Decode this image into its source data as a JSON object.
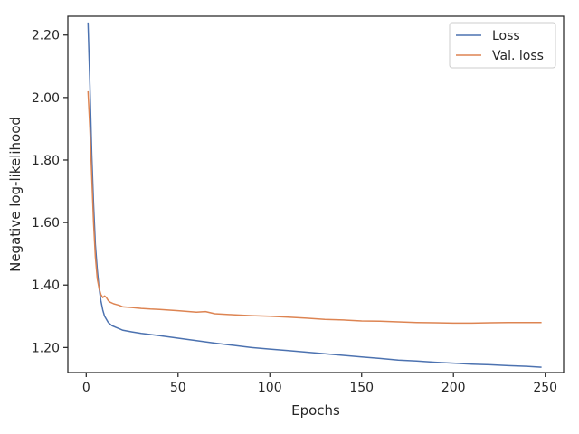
{
  "chart_data": {
    "type": "line",
    "xlabel": "Epochs",
    "ylabel": "Negative log-likelihood",
    "xlim": [
      -10,
      260
    ],
    "ylim": [
      1.12,
      2.26
    ],
    "xticks": [
      0,
      50,
      100,
      150,
      200,
      250
    ],
    "yticks": [
      1.2,
      1.4,
      1.6,
      1.8,
      2.0,
      2.2
    ],
    "ytick_labels": [
      "1.20",
      "1.40",
      "1.60",
      "1.80",
      "2.00",
      "2.20"
    ],
    "grid": false,
    "legend_position": "top-right",
    "series": [
      {
        "name": "Loss",
        "color": "#4c72b0",
        "x": [
          1,
          2,
          3,
          4,
          5,
          6,
          7,
          8,
          9,
          10,
          12,
          14,
          16,
          18,
          20,
          25,
          30,
          40,
          50,
          60,
          70,
          80,
          90,
          100,
          110,
          120,
          130,
          140,
          150,
          160,
          170,
          180,
          190,
          200,
          210,
          220,
          230,
          240,
          248
        ],
        "y": [
          2.24,
          2.04,
          1.82,
          1.66,
          1.53,
          1.45,
          1.39,
          1.35,
          1.32,
          1.3,
          1.28,
          1.27,
          1.265,
          1.26,
          1.255,
          1.25,
          1.245,
          1.238,
          1.23,
          1.222,
          1.214,
          1.207,
          1.2,
          1.195,
          1.19,
          1.185,
          1.18,
          1.175,
          1.17,
          1.165,
          1.16,
          1.157,
          1.153,
          1.15,
          1.147,
          1.145,
          1.142,
          1.14,
          1.137
        ]
      },
      {
        "name": "Val. loss",
        "color": "#dd8452",
        "x": [
          1,
          2,
          3,
          4,
          5,
          6,
          7,
          8,
          9,
          10,
          11,
          12,
          13,
          15,
          18,
          20,
          25,
          30,
          35,
          40,
          50,
          60,
          65,
          70,
          80,
          90,
          100,
          110,
          120,
          130,
          140,
          150,
          160,
          170,
          180,
          190,
          200,
          210,
          220,
          230,
          240,
          248
        ],
        "y": [
          2.02,
          1.9,
          1.75,
          1.6,
          1.49,
          1.42,
          1.39,
          1.37,
          1.36,
          1.365,
          1.36,
          1.35,
          1.345,
          1.34,
          1.335,
          1.33,
          1.328,
          1.325,
          1.323,
          1.322,
          1.318,
          1.313,
          1.315,
          1.308,
          1.305,
          1.302,
          1.3,
          1.297,
          1.294,
          1.29,
          1.288,
          1.285,
          1.284,
          1.282,
          1.28,
          1.279,
          1.278,
          1.278,
          1.279,
          1.28,
          1.28,
          1.28
        ]
      }
    ]
  }
}
